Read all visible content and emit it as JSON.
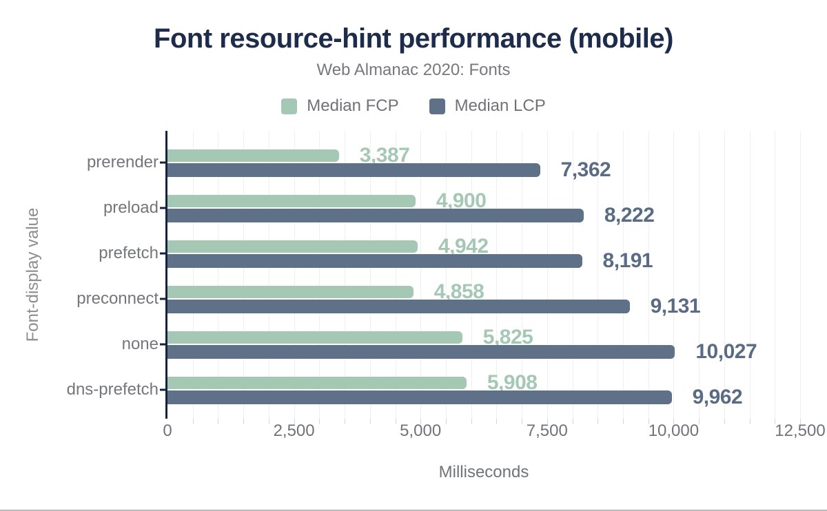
{
  "header": {
    "title": "Font resource-hint performance (mobile)",
    "subtitle": "Web Almanac 2020: Fonts"
  },
  "legend": [
    {
      "name": "Median FCP",
      "color": "#a5c8b5"
    },
    {
      "name": "Median LCP",
      "color": "#5e7189"
    }
  ],
  "colors": {
    "title": "#1e2c4c",
    "axis": "#16233c",
    "gridline": "#efefef",
    "gray_text": "#73767c",
    "fcp_green": "#a5c8b5",
    "lcp_slate": "#5e7189",
    "lcp_label": "#5a6b84",
    "bottom_divider": "#b9bbbd"
  },
  "chart_data": {
    "type": "bar",
    "orientation": "horizontal",
    "title": "Font resource-hint performance (mobile)",
    "subtitle": "Web Almanac 2020: Fonts",
    "categories": [
      "prerender",
      "preload",
      "prefetch",
      "preconnect",
      "none",
      "dns-prefetch"
    ],
    "series": [
      {
        "name": "Median FCP",
        "color": "#a5c8b5",
        "label_color": "#a5c8b5",
        "values": [
          3387,
          4900,
          4942,
          4858,
          5825,
          5908
        ],
        "labels": [
          "3,387",
          "4,900",
          "4,942",
          "4,858",
          "5,825",
          "5,908"
        ]
      },
      {
        "name": "Median LCP",
        "color": "#5e7189",
        "label_color": "#5a6b84",
        "values": [
          7362,
          8222,
          8191,
          9131,
          10027,
          9962
        ],
        "labels": [
          "7,362",
          "8,222",
          "8,191",
          "9,131",
          "10,027",
          "9,962"
        ]
      }
    ],
    "xlabel": "Milliseconds",
    "ylabel": "Font-display value",
    "xlim": [
      0,
      12500
    ],
    "x_ticks": [
      {
        "value": 0,
        "label": "0"
      },
      {
        "value": 2500,
        "label": "2,500"
      },
      {
        "value": 5000,
        "label": "5,000"
      },
      {
        "value": 7500,
        "label": "7,500"
      },
      {
        "value": 10000,
        "label": "10,000"
      },
      {
        "value": 12500,
        "label": "12,500"
      }
    ],
    "minor_step": 500,
    "grid": true,
    "legend_position": "top"
  }
}
